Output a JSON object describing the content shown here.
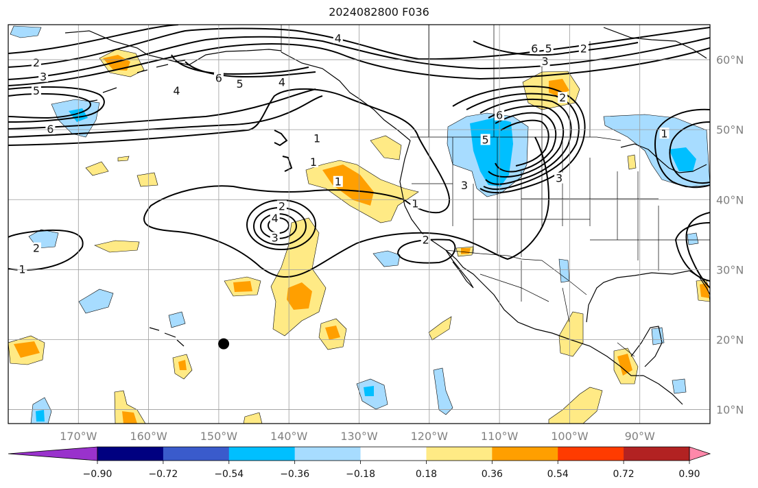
{
  "map": {
    "title": "2024082800 F036",
    "extent": {
      "lon_min": -180,
      "lon_max": -80,
      "lat_min": 8,
      "lat_max": 65
    },
    "lon_ticks": [
      {
        "lon": -170,
        "label": "170°W"
      },
      {
        "lon": -160,
        "label": "160°W"
      },
      {
        "lon": -150,
        "label": "150°W"
      },
      {
        "lon": -140,
        "label": "140°W"
      },
      {
        "lon": -130,
        "label": "130°W"
      },
      {
        "lon": -120,
        "label": "120°W"
      },
      {
        "lon": -110,
        "label": "110°W"
      },
      {
        "lon": -100,
        "label": "100°W"
      },
      {
        "lon": -90,
        "label": "90°W"
      }
    ],
    "lat_ticks": [
      {
        "lat": 60,
        "label": "60°N"
      },
      {
        "lat": 50,
        "label": "50°N"
      },
      {
        "lat": 40,
        "label": "40°N"
      },
      {
        "lat": 30,
        "label": "30°N"
      },
      {
        "lat": 20,
        "label": "20°N"
      },
      {
        "lat": 10,
        "label": "10°N"
      }
    ],
    "gridlines": true,
    "marker": {
      "lon": -149.3,
      "lat": 19.4,
      "color": "#000000"
    },
    "contour_labels": [
      {
        "text": "2",
        "lon": -176,
        "lat": 59.5
      },
      {
        "text": "3",
        "lon": -175,
        "lat": 57.5
      },
      {
        "text": "5",
        "lon": -176,
        "lat": 55.5
      },
      {
        "text": "4",
        "lon": -156,
        "lat": 55.5
      },
      {
        "text": "6",
        "lon": -150,
        "lat": 57.3
      },
      {
        "text": "5",
        "lon": -147,
        "lat": 56.5
      },
      {
        "text": "4",
        "lon": -141,
        "lat": 56.7
      },
      {
        "text": "4",
        "lon": -133,
        "lat": 63
      },
      {
        "text": "6",
        "lon": -174,
        "lat": 50
      },
      {
        "text": "1",
        "lon": -136,
        "lat": 48.7
      },
      {
        "text": "1",
        "lon": -136.5,
        "lat": 45.3
      },
      {
        "text": "1",
        "lon": -133,
        "lat": 42.5
      },
      {
        "text": "2",
        "lon": -141,
        "lat": 39
      },
      {
        "text": "4",
        "lon": -142,
        "lat": 37.3
      },
      {
        "text": "3",
        "lon": -142,
        "lat": 34.5
      },
      {
        "text": "1",
        "lon": -122,
        "lat": 39.4
      },
      {
        "text": "2",
        "lon": -120.5,
        "lat": 34.2
      },
      {
        "text": "1",
        "lon": -178,
        "lat": 30
      },
      {
        "text": "2",
        "lon": -176,
        "lat": 33
      },
      {
        "text": "6",
        "lon": -105,
        "lat": 61.5
      },
      {
        "text": "5",
        "lon": -103,
        "lat": 61.5
      },
      {
        "text": "3",
        "lon": -103.5,
        "lat": 59.7
      },
      {
        "text": "2",
        "lon": -98,
        "lat": 61.5
      },
      {
        "text": "2",
        "lon": -101,
        "lat": 54.5
      },
      {
        "text": "6",
        "lon": -110,
        "lat": 52
      },
      {
        "text": "5",
        "lon": -112,
        "lat": 48.5
      },
      {
        "text": "3",
        "lon": -101.5,
        "lat": 43
      },
      {
        "text": "3",
        "lon": -115,
        "lat": 42
      },
      {
        "text": "1",
        "lon": -86.5,
        "lat": 49.4
      }
    ]
  },
  "colorbar": {
    "under_color": "#9932cc",
    "over_color": "#ff88aa",
    "segments": [
      "#000080",
      "#3a5bcc",
      "#00bfff",
      "#a7dcff",
      "#ffffff",
      "#ffea85",
      "#ff9f00",
      "#ff3b00",
      "#b22222"
    ],
    "labels": [
      "−0.90",
      "−0.72",
      "−0.54",
      "−0.36",
      "−0.18",
      "0.18",
      "0.36",
      "0.54",
      "0.72",
      "0.90"
    ]
  }
}
